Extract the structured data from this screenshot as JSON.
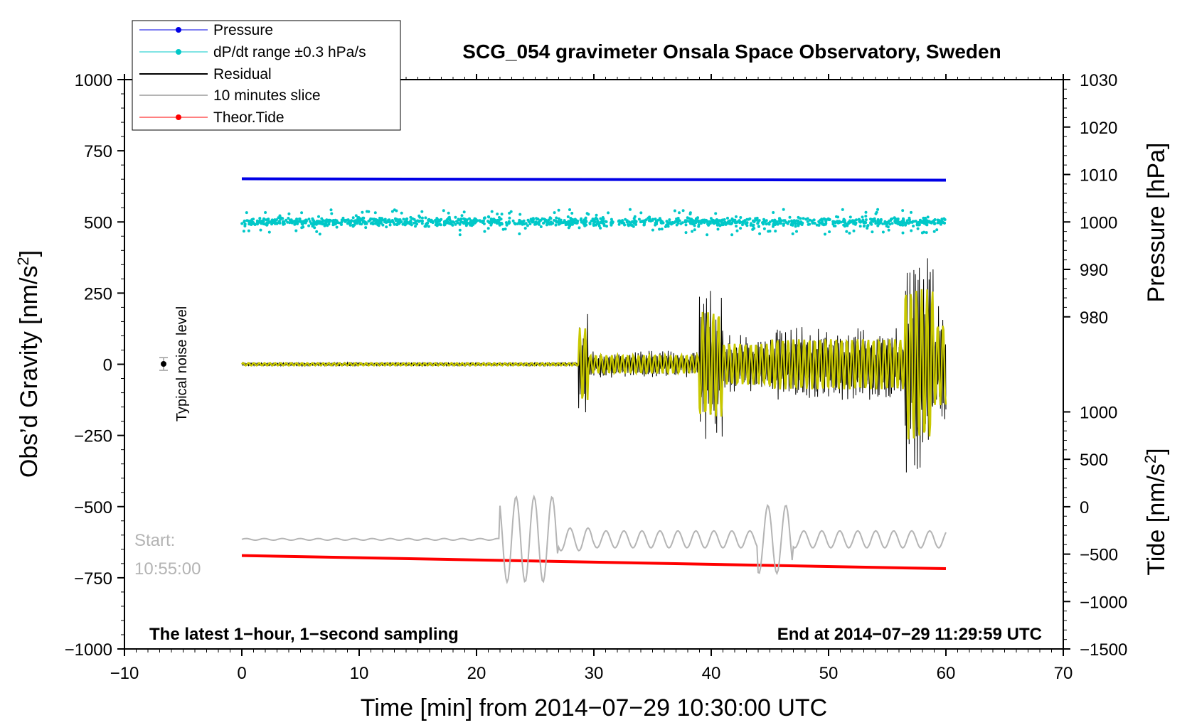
{
  "chart_data": {
    "type": "line",
    "title": "SCG_054 gravimeter Onsala Space Observatory, Sweden",
    "xlabel": "Time [min] from 2014−07−29 10:30:00 UTC",
    "ylabel_left": "Obs’d Gravity [nm/s²]",
    "ylabel_left_main": "Obs’d Gravity [nm/s",
    "ylabel_left_sup": "2",
    "ylabel_left_close": "]",
    "ylabel_right_pressure": "Pressure [hPa]",
    "ylabel_right_tide": "Tide [nm/s²]",
    "ylabel_right_tide_main": "Tide [nm/s",
    "ylabel_right_tide_sup": "2",
    "ylabel_right_tide_close": "]",
    "xlim": [
      -10,
      70
    ],
    "ylim_left": [
      -1000,
      1000
    ],
    "x_ticks": [
      "−10",
      "0",
      "10",
      "20",
      "30",
      "40",
      "50",
      "60",
      "70"
    ],
    "y_ticks_left": [
      "1000",
      "750",
      "500",
      "250",
      "0",
      "−250",
      "−500",
      "−750",
      "−1000"
    ],
    "y_ticks_pressure": [
      "1030",
      "1020",
      "1010",
      "1000",
      "990",
      "980"
    ],
    "y_ticks_tide": [
      "1000",
      "500",
      "0",
      "−500",
      "−1000",
      "−1500"
    ],
    "legend_position": "top-left",
    "legend": [
      {
        "label": "Pressure",
        "color": "#0000e6",
        "marker": true
      },
      {
        "label": "dP/dt range ±0.3 hPa/s",
        "color": "#00c8c8",
        "marker": true
      },
      {
        "label": "Residual",
        "color": "#000000",
        "marker": false
      },
      {
        "label": "10 minutes slice",
        "color": "#b4b4b4",
        "marker": false
      },
      {
        "label": "Theor.Tide",
        "color": "#ff0000",
        "marker": true
      }
    ],
    "series": [
      {
        "name": "Pressure",
        "color": "#0000e6",
        "axis": "pressure",
        "x": [
          0,
          60
        ],
        "values": [
          1009.1,
          1008.8
        ]
      },
      {
        "name": "dP/dt range ±0.3 hPa/s",
        "color": "#00c8c8",
        "axis": "left",
        "x_range": [
          0,
          60
        ],
        "center": 500,
        "spread": 30
      },
      {
        "name": "Residual",
        "color": "#000000",
        "axis": "left",
        "x_range": [
          0,
          60
        ],
        "peak_min": -430,
        "peak_max": 410
      },
      {
        "name": "Residual (filtered)",
        "color": "#c8c800",
        "axis": "left",
        "x_range": [
          0,
          60
        ],
        "peak_min": -340,
        "peak_max": 320
      },
      {
        "name": "10 minutes slice",
        "color": "#b4b4b4",
        "axis": "left",
        "x_range": [
          0,
          60
        ],
        "baseline": -615,
        "peak_min": -835,
        "peak_max": -465
      },
      {
        "name": "Theor.Tide",
        "color": "#ff0000",
        "axis": "left",
        "x": [
          0,
          60
        ],
        "values": [
          -672,
          -718
        ]
      }
    ],
    "annotations": {
      "noise_label": "Typical noise level",
      "noise_x": -7,
      "noise_y": 0,
      "start_label": "Start:",
      "start_time": "10:55:00",
      "bottom_left": "The latest 1−hour, 1−second sampling",
      "bottom_right": "End at 2014−07−29 11:29:59 UTC"
    }
  }
}
